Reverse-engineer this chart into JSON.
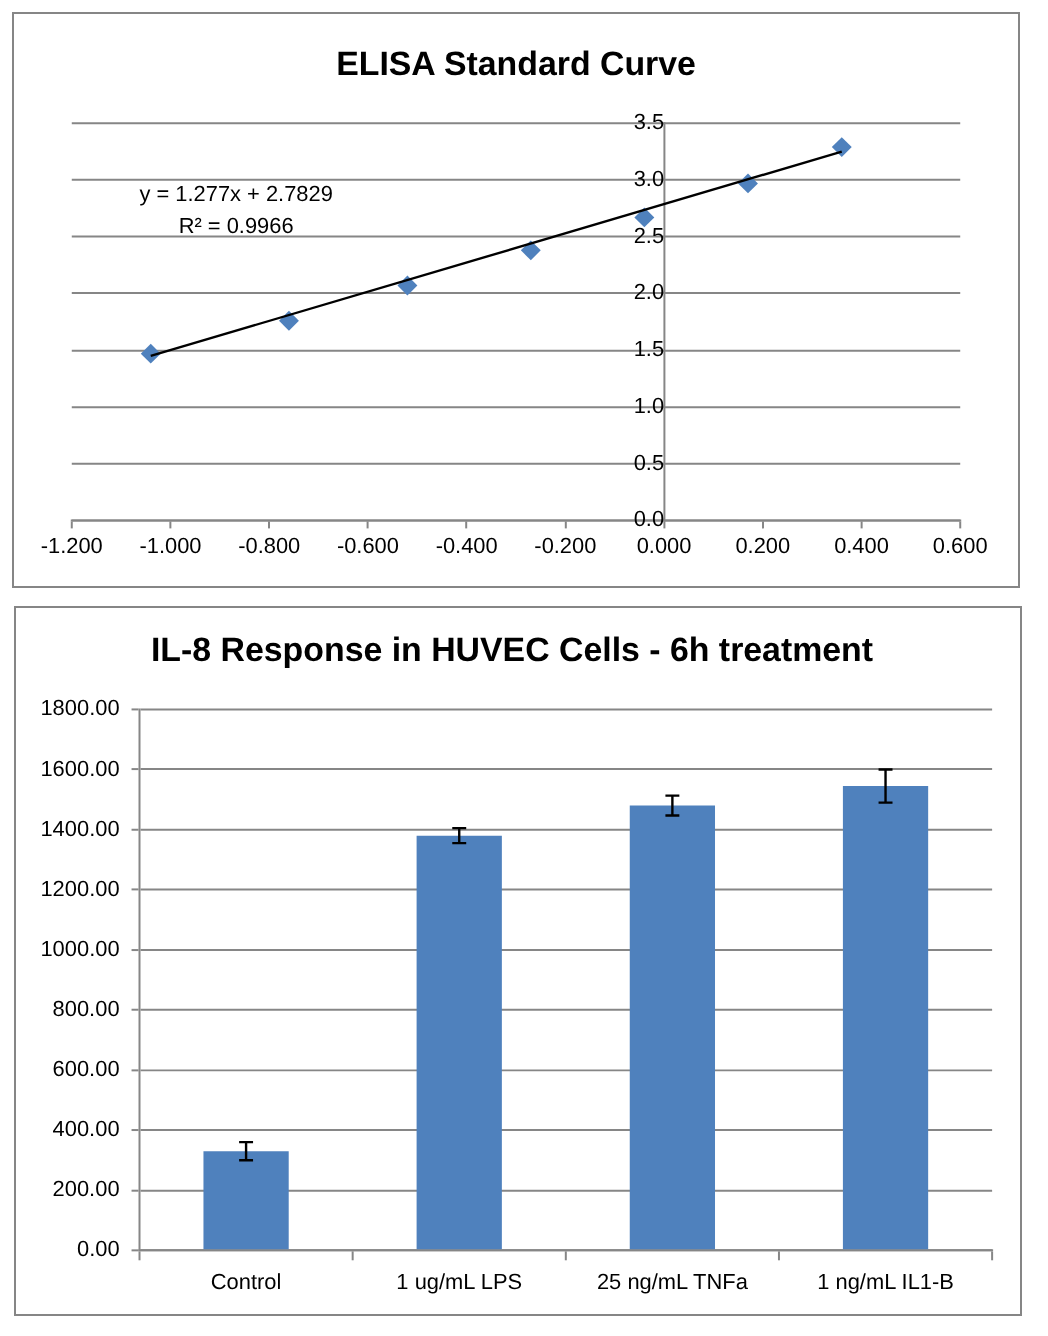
{
  "chart_data": [
    {
      "type": "scatter",
      "title": "ELISA Standard Curve",
      "marker": "diamond",
      "grid": "y",
      "x": [
        -1.04,
        -0.76,
        -0.52,
        -0.27,
        -0.04,
        0.17,
        0.36
      ],
      "series": [
        {
          "type": "scatter",
          "color": "#4f81bd",
          "values": [
            1.47,
            1.76,
            2.07,
            2.38,
            2.67,
            2.97,
            3.29
          ]
        },
        {
          "type": "line",
          "color": "#000000",
          "marker": "none",
          "x": [
            -1.04,
            0.36
          ],
          "values": [
            1.45,
            3.25
          ]
        }
      ],
      "xlim": [
        -1.2,
        0.6
      ],
      "xticks": [
        {
          "value": -1.2,
          "label": "-1.200"
        },
        {
          "value": -1,
          "label": "-1.000"
        },
        {
          "value": -0.8,
          "label": "-0.800"
        },
        {
          "value": -0.6,
          "label": "-0.600"
        },
        {
          "value": -0.4,
          "label": "-0.400"
        },
        {
          "value": -0.2,
          "label": "-0.200"
        },
        {
          "value": 0,
          "label": "0.000"
        },
        {
          "value": 0.2,
          "label": "0.200"
        },
        {
          "value": 0.4,
          "label": "0.400"
        },
        {
          "value": 0.6,
          "label": "0.600"
        }
      ],
      "ylim": [
        0,
        3.5
      ],
      "yticks": [
        {
          "value": 0,
          "label": "0.0"
        },
        0.5,
        {
          "value": 1,
          "label": "1.0"
        },
        1.5,
        {
          "value": 2,
          "label": "2.0"
        },
        2.5,
        {
          "value": 3,
          "label": "3.0"
        },
        3.5
      ],
      "annotations": [
        "y = 1.277x + 2.7829",
        "R² = 0.9966"
      ]
    },
    {
      "type": "bar",
      "title": "IL-8 Response in HUVEC Cells - 6h treatment",
      "grid": "y",
      "categories": [
        "Control",
        "1 ug/mL LPS",
        "25 ng/mL TNFa",
        "1 ng/mL IL1-B"
      ],
      "values": [
        330,
        1380,
        1480,
        1545
      ],
      "errors": [
        30,
        25,
        33,
        55
      ],
      "color": "#4f81bd",
      "ylim": [
        0,
        1800
      ],
      "yticks": [
        {
          "value": 0,
          "label": "0.00"
        },
        {
          "value": 200,
          "label": "200.00"
        },
        {
          "value": 400,
          "label": "400.00"
        },
        {
          "value": 600,
          "label": "600.00"
        },
        {
          "value": 800,
          "label": "800.00"
        },
        {
          "value": 1000,
          "label": "1000.00"
        },
        {
          "value": 1200,
          "label": "1200.00"
        },
        {
          "value": 1400,
          "label": "1400.00"
        },
        {
          "value": 1600,
          "label": "1600.00"
        },
        {
          "value": 1800,
          "label": "1800.00"
        }
      ]
    }
  ]
}
